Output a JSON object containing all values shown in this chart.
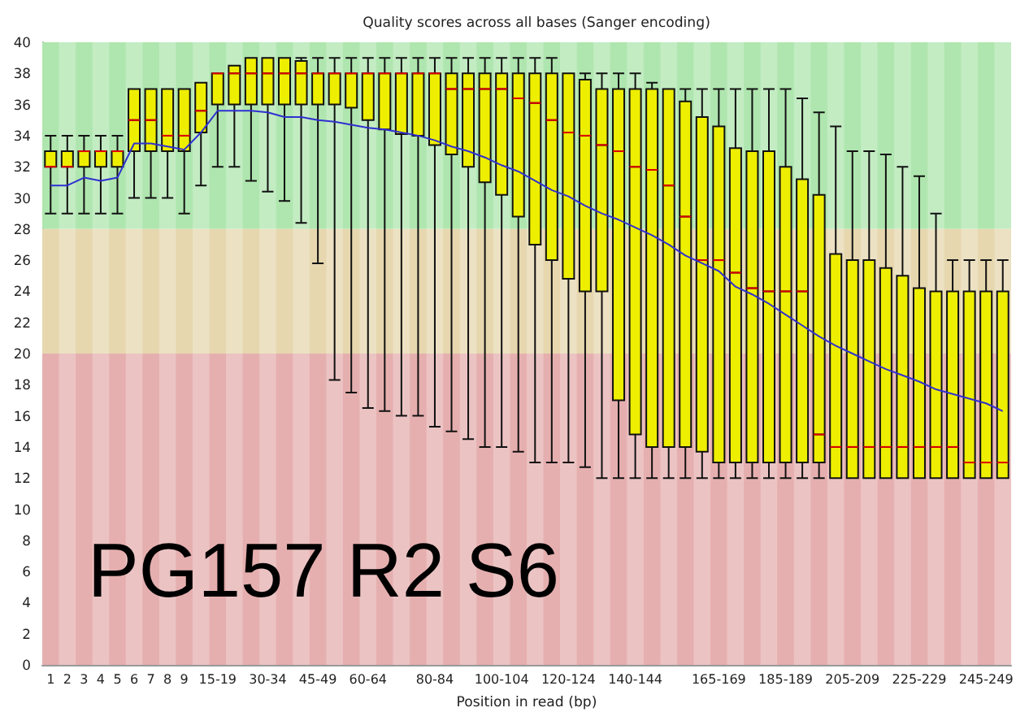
{
  "chart_data": {
    "type": "box",
    "title": "Quality scores across all bases (Sanger encoding)",
    "xlabel": "Position in read (bp)",
    "categories": [
      "1",
      "2",
      "3",
      "4",
      "5",
      "6",
      "7",
      "8",
      "9",
      null,
      "15-19",
      null,
      null,
      "30-34",
      null,
      null,
      "45-49",
      null,
      null,
      "60-64",
      null,
      null,
      null,
      "80-84",
      null,
      null,
      null,
      "100-104",
      null,
      null,
      null,
      "120-124",
      null,
      null,
      null,
      "140-144",
      null,
      null,
      null,
      null,
      "165-169",
      null,
      null,
      null,
      "185-189",
      null,
      null,
      null,
      "205-209",
      null,
      null,
      null,
      "225-229",
      null,
      null,
      null,
      "245-249",
      null
    ],
    "series": [
      {
        "type": "box",
        "color": "#eeee00",
        "boxes": [
          {
            "low": 29,
            "q1": 32,
            "median": 32,
            "q3": 33,
            "high": 34
          },
          {
            "low": 29,
            "q1": 32,
            "median": 32,
            "q3": 33,
            "high": 34
          },
          {
            "low": 29,
            "q1": 32,
            "median": 33,
            "q3": 33,
            "high": 34
          },
          {
            "low": 29,
            "q1": 32,
            "median": 33,
            "q3": 33,
            "high": 34
          },
          {
            "low": 29,
            "q1": 32,
            "median": 33,
            "q3": 33,
            "high": 34
          },
          {
            "low": 30,
            "q1": 33,
            "median": 35,
            "q3": 37,
            "high": 37
          },
          {
            "low": 30,
            "q1": 33,
            "median": 35,
            "q3": 37,
            "high": 37
          },
          {
            "low": 30,
            "q1": 33,
            "median": 34,
            "q3": 37,
            "high": 37
          },
          {
            "low": 29,
            "q1": 33,
            "median": 34,
            "q3": 37,
            "high": 37
          },
          {
            "low": 30.8,
            "q1": 34.2,
            "median": 35.6,
            "q3": 37.4,
            "high": 37.4
          },
          {
            "low": 32,
            "q1": 36,
            "median": 38,
            "q3": 38,
            "high": 38
          },
          {
            "low": 32,
            "q1": 36,
            "median": 38,
            "q3": 38.5,
            "high": 38.5
          },
          {
            "low": 31.1,
            "q1": 36,
            "median": 38,
            "q3": 39,
            "high": 39
          },
          {
            "low": 30.4,
            "q1": 36,
            "median": 38,
            "q3": 39,
            "high": 39
          },
          {
            "low": 29.8,
            "q1": 36,
            "median": 38,
            "q3": 39,
            "high": 39
          },
          {
            "low": 28.4,
            "q1": 36,
            "median": 38,
            "q3": 38.8,
            "high": 39
          },
          {
            "low": 25.8,
            "q1": 36,
            "median": 38,
            "q3": 38,
            "high": 39
          },
          {
            "low": 18.3,
            "q1": 36,
            "median": 38,
            "q3": 38,
            "high": 39
          },
          {
            "low": 17.5,
            "q1": 35.8,
            "median": 38,
            "q3": 38,
            "high": 39
          },
          {
            "low": 16.5,
            "q1": 35,
            "median": 38,
            "q3": 38,
            "high": 39
          },
          {
            "low": 16.3,
            "q1": 34.4,
            "median": 38,
            "q3": 38,
            "high": 39
          },
          {
            "low": 16,
            "q1": 34.1,
            "median": 38,
            "q3": 38,
            "high": 39
          },
          {
            "low": 16,
            "q1": 34,
            "median": 38,
            "q3": 38,
            "high": 39
          },
          {
            "low": 15.3,
            "q1": 33.4,
            "median": 38,
            "q3": 38,
            "high": 39
          },
          {
            "low": 15,
            "q1": 32.8,
            "median": 37,
            "q3": 38,
            "high": 39
          },
          {
            "low": 14.5,
            "q1": 32,
            "median": 37,
            "q3": 38,
            "high": 39
          },
          {
            "low": 14,
            "q1": 31,
            "median": 37,
            "q3": 38,
            "high": 39
          },
          {
            "low": 14,
            "q1": 30.2,
            "median": 37,
            "q3": 38,
            "high": 39
          },
          {
            "low": 13.7,
            "q1": 28.8,
            "median": 36.4,
            "q3": 38,
            "high": 39
          },
          {
            "low": 13,
            "q1": 27,
            "median": 36.1,
            "q3": 38,
            "high": 39
          },
          {
            "low": 13,
            "q1": 26,
            "median": 35,
            "q3": 38,
            "high": 39
          },
          {
            "low": 13,
            "q1": 24.8,
            "median": 34.2,
            "q3": 38,
            "high": 38
          },
          {
            "low": 12.7,
            "q1": 24,
            "median": 34,
            "q3": 37.6,
            "high": 38
          },
          {
            "low": 12,
            "q1": 24,
            "median": 33.4,
            "q3": 37,
            "high": 38
          },
          {
            "low": 12,
            "q1": 17,
            "median": 33,
            "q3": 37,
            "high": 38
          },
          {
            "low": 12,
            "q1": 14.8,
            "median": 32,
            "q3": 37,
            "high": 38
          },
          {
            "low": 12,
            "q1": 14,
            "median": 31.8,
            "q3": 37,
            "high": 37.4
          },
          {
            "low": 12,
            "q1": 14,
            "median": 30.8,
            "q3": 37,
            "high": 37
          },
          {
            "low": 12,
            "q1": 14,
            "median": 28.8,
            "q3": 36.2,
            "high": 37
          },
          {
            "low": 12,
            "q1": 13.7,
            "median": 26,
            "q3": 35.2,
            "high": 37
          },
          {
            "low": 12,
            "q1": 13,
            "median": 26,
            "q3": 34.6,
            "high": 37
          },
          {
            "low": 12,
            "q1": 13,
            "median": 25.2,
            "q3": 33.2,
            "high": 37
          },
          {
            "low": 12,
            "q1": 13,
            "median": 24.2,
            "q3": 33,
            "high": 37
          },
          {
            "low": 12,
            "q1": 13,
            "median": 24,
            "q3": 33,
            "high": 37
          },
          {
            "low": 12,
            "q1": 13,
            "median": 24,
            "q3": 32,
            "high": 37
          },
          {
            "low": 12,
            "q1": 13,
            "median": 24,
            "q3": 31.2,
            "high": 36.4
          },
          {
            "low": 12,
            "q1": 13,
            "median": 14.8,
            "q3": 30.2,
            "high": 35.5
          },
          {
            "low": 12,
            "q1": 12,
            "median": 14,
            "q3": 26.4,
            "high": 34.6
          },
          {
            "low": 12,
            "q1": 12,
            "median": 14,
            "q3": 26,
            "high": 33
          },
          {
            "low": 12,
            "q1": 12,
            "median": 14,
            "q3": 26,
            "high": 33
          },
          {
            "low": 12,
            "q1": 12,
            "median": 14,
            "q3": 25.5,
            "high": 32.8
          },
          {
            "low": 12,
            "q1": 12,
            "median": 14,
            "q3": 25,
            "high": 32
          },
          {
            "low": 12,
            "q1": 12,
            "median": 14,
            "q3": 24.2,
            "high": 31.4
          },
          {
            "low": 12,
            "q1": 12,
            "median": 14,
            "q3": 24,
            "high": 29
          },
          {
            "low": 12,
            "q1": 12,
            "median": 14,
            "q3": 24,
            "high": 26
          },
          {
            "low": 12,
            "q1": 12,
            "median": 13,
            "q3": 24,
            "high": 26
          },
          {
            "low": 12,
            "q1": 12,
            "median": 13,
            "q3": 24,
            "high": 26
          },
          {
            "low": 12,
            "q1": 12,
            "median": 13,
            "q3": 24,
            "high": 26
          }
        ]
      },
      {
        "type": "line",
        "color": "#3030d0",
        "values": [
          30.8,
          30.8,
          31.3,
          31.1,
          31.3,
          33.5,
          33.5,
          33.3,
          33.1,
          34.2,
          35.6,
          35.6,
          35.6,
          35.5,
          35.2,
          35.2,
          35.0,
          34.9,
          34.7,
          34.5,
          34.4,
          34.2,
          34.0,
          33.7,
          33.3,
          33.0,
          32.6,
          32.1,
          31.7,
          31.1,
          30.5,
          30.1,
          29.5,
          29.0,
          28.6,
          28.1,
          27.6,
          27.0,
          26.3,
          25.8,
          25.3,
          24.3,
          23.8,
          23.2,
          22.5,
          21.8,
          21.1,
          20.5,
          20.0,
          19.5,
          19.0,
          18.6,
          18.2,
          17.7,
          17.4,
          17.1,
          16.8,
          16.3
        ]
      }
    ],
    "ylim": [
      0,
      40
    ],
    "yticks": [
      0,
      2,
      4,
      6,
      8,
      10,
      12,
      14,
      16,
      18,
      20,
      22,
      24,
      26,
      28,
      30,
      32,
      34,
      36,
      38,
      40
    ],
    "bands": [
      {
        "axis": "y",
        "from": 28,
        "to": 40,
        "color": "#afe6af"
      },
      {
        "axis": "y",
        "from": 20,
        "to": 28,
        "color": "#e6d7af"
      },
      {
        "axis": "y",
        "from": 0,
        "to": 20,
        "color": "#e6afaf"
      }
    ],
    "annotations": [
      "PG157 R2 S6"
    ],
    "grid": false,
    "marker": "none",
    "line_style": "solid"
  }
}
